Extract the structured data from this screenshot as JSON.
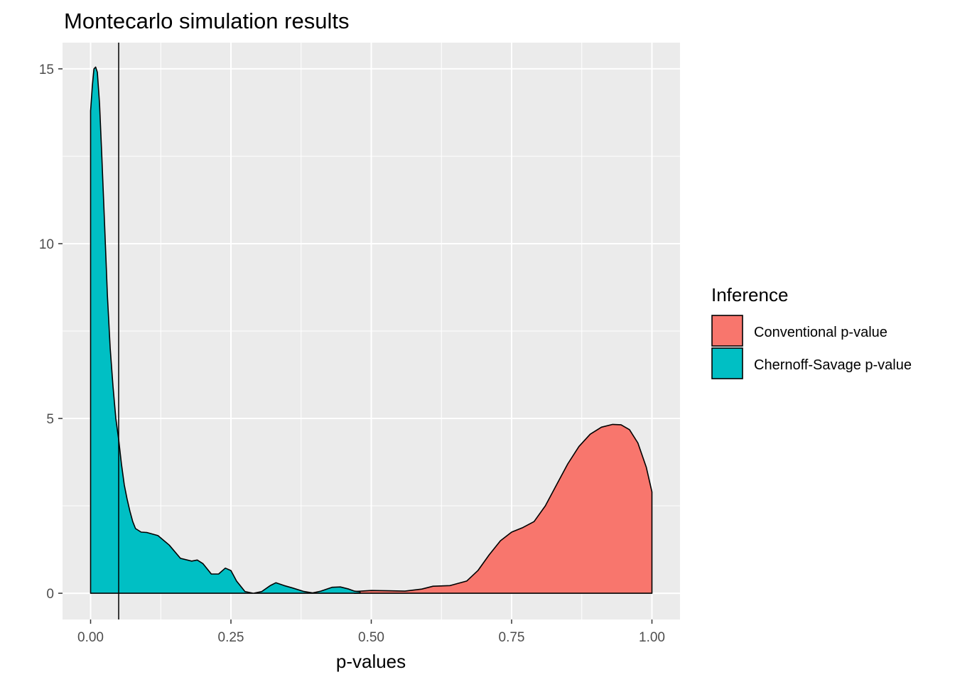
{
  "chart_data": {
    "type": "area",
    "title": "Montecarlo simulation results",
    "xlabel": "p-values",
    "ylabel": "",
    "xlim": [
      -0.05,
      1.05
    ],
    "ylim": [
      -0.75,
      15.75
    ],
    "x_ticks": [
      0,
      0.25,
      0.5,
      0.75,
      1
    ],
    "x_tick_labels": [
      "0.00",
      "0.25",
      "0.50",
      "0.75",
      "1.00"
    ],
    "y_ticks": [
      0,
      5,
      10,
      15
    ],
    "y_tick_labels": [
      "0",
      "5",
      "10",
      "15"
    ],
    "grid": true,
    "panel_background": "#ebebeb",
    "vline": {
      "x": 0.05,
      "color": "#000000"
    },
    "legend": {
      "title": "Inference",
      "position": "right",
      "entries": [
        {
          "label": "Conventional p-value",
          "color": "#f8766d"
        },
        {
          "label": "Chernoff-Savage p-value",
          "color": "#00bfc4"
        }
      ]
    },
    "series": [
      {
        "name": "Conventional p-value",
        "color": "#f8766d",
        "points": [
          [
            0.47,
            0.05
          ],
          [
            0.5,
            0.08
          ],
          [
            0.53,
            0.07
          ],
          [
            0.56,
            0.06
          ],
          [
            0.59,
            0.12
          ],
          [
            0.61,
            0.2
          ],
          [
            0.64,
            0.22
          ],
          [
            0.67,
            0.35
          ],
          [
            0.69,
            0.65
          ],
          [
            0.71,
            1.1
          ],
          [
            0.73,
            1.5
          ],
          [
            0.75,
            1.75
          ],
          [
            0.77,
            1.88
          ],
          [
            0.79,
            2.05
          ],
          [
            0.81,
            2.5
          ],
          [
            0.83,
            3.1
          ],
          [
            0.85,
            3.7
          ],
          [
            0.87,
            4.2
          ],
          [
            0.89,
            4.55
          ],
          [
            0.91,
            4.75
          ],
          [
            0.93,
            4.83
          ],
          [
            0.945,
            4.82
          ],
          [
            0.96,
            4.68
          ],
          [
            0.975,
            4.3
          ],
          [
            0.99,
            3.6
          ],
          [
            1.0,
            2.9
          ]
        ]
      },
      {
        "name": "Chernoff-Savage p-value",
        "color": "#00bfc4",
        "points": [
          [
            0.0,
            13.8
          ],
          [
            0.003,
            14.5
          ],
          [
            0.006,
            15.0
          ],
          [
            0.009,
            15.05
          ],
          [
            0.012,
            14.9
          ],
          [
            0.016,
            14.0
          ],
          [
            0.02,
            12.5
          ],
          [
            0.025,
            10.5
          ],
          [
            0.03,
            8.5
          ],
          [
            0.035,
            7.0
          ],
          [
            0.04,
            5.9
          ],
          [
            0.045,
            5.0
          ],
          [
            0.05,
            4.4
          ],
          [
            0.055,
            3.7
          ],
          [
            0.06,
            3.1
          ],
          [
            0.065,
            2.7
          ],
          [
            0.07,
            2.35
          ],
          [
            0.075,
            2.05
          ],
          [
            0.08,
            1.85
          ],
          [
            0.09,
            1.75
          ],
          [
            0.1,
            1.74
          ],
          [
            0.12,
            1.65
          ],
          [
            0.14,
            1.38
          ],
          [
            0.16,
            1.0
          ],
          [
            0.18,
            0.92
          ],
          [
            0.19,
            0.95
          ],
          [
            0.2,
            0.85
          ],
          [
            0.215,
            0.55
          ],
          [
            0.228,
            0.55
          ],
          [
            0.24,
            0.72
          ],
          [
            0.25,
            0.65
          ],
          [
            0.26,
            0.35
          ],
          [
            0.275,
            0.05
          ],
          [
            0.29,
            0.0
          ],
          [
            0.305,
            0.05
          ],
          [
            0.32,
            0.22
          ],
          [
            0.33,
            0.3
          ],
          [
            0.345,
            0.22
          ],
          [
            0.36,
            0.15
          ],
          [
            0.38,
            0.05
          ],
          [
            0.395,
            0.01
          ],
          [
            0.41,
            0.06
          ],
          [
            0.43,
            0.17
          ],
          [
            0.445,
            0.18
          ],
          [
            0.46,
            0.12
          ],
          [
            0.47,
            0.06
          ],
          [
            0.48,
            0.04
          ]
        ]
      }
    ]
  }
}
